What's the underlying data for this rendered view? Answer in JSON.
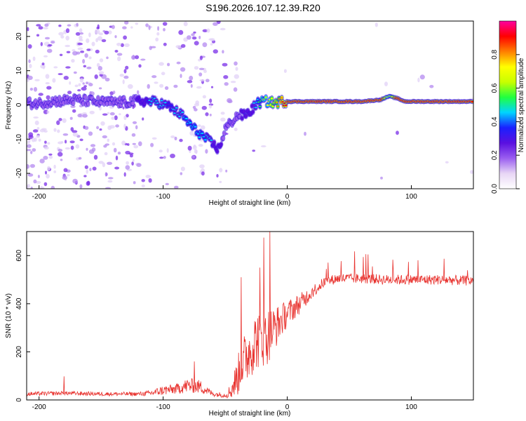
{
  "title": "S196.2026.107.12.39.R20",
  "colors": {
    "snr_line": "#e8322e",
    "spec_bg": "#ffffff",
    "colormap": [
      "#ffffff",
      "#e8d6f5",
      "#9a5ef0",
      "#5a10e0",
      "#1a20ff",
      "#00d4ff",
      "#20ff40",
      "#c8ff00",
      "#ffff00",
      "#ff7f00",
      "#ff0000",
      "#ff00a0"
    ]
  },
  "chart_data": [
    {
      "type": "heatmap",
      "name": "spectrogram",
      "xlabel": "Height of straight line (km)",
      "ylabel": "Frequency (Hz)",
      "xlim": [
        -210,
        150
      ],
      "ylim": [
        -24.5,
        24.5
      ],
      "xticks": [
        -200,
        -100,
        0,
        100
      ],
      "yticks": [
        -20,
        -10,
        0,
        10,
        20
      ],
      "colorbar": {
        "label": "Normalized spectral amplitude",
        "range": [
          0,
          1
        ],
        "ticks": [
          0.0,
          0.2,
          0.4,
          0.6,
          0.8
        ]
      },
      "ridge": {
        "x": [
          -200,
          -185,
          -170,
          -150,
          -130,
          -120,
          -105,
          -95,
          -85,
          -75,
          -65,
          -55,
          -50,
          -45,
          -40,
          -35,
          -30,
          -25,
          -20,
          -15,
          -10,
          -5,
          0,
          20,
          40,
          60,
          75,
          82,
          88,
          95,
          110,
          130,
          150
        ],
        "freq": [
          0.5,
          1.2,
          1.5,
          0.8,
          0.8,
          1.2,
          0.8,
          -0.5,
          -3,
          -7,
          -10,
          -13,
          -7,
          -5,
          -3,
          -3,
          -2,
          0.2,
          1.0,
          1.0,
          0.5,
          1.0,
          1.0,
          1.0,
          1.0,
          1.0,
          1.5,
          2.5,
          2.0,
          1.0,
          1.0,
          1.0,
          1.0
        ],
        "amplitude": [
          0.25,
          0.28,
          0.22,
          0.2,
          0.22,
          0.35,
          0.45,
          0.4,
          0.45,
          0.5,
          0.45,
          0.35,
          0.3,
          0.3,
          0.3,
          0.35,
          0.35,
          0.45,
          0.6,
          0.7,
          0.75,
          0.85,
          0.95,
          0.95,
          0.95,
          0.95,
          0.95,
          0.6,
          0.9,
          0.95,
          0.95,
          0.95,
          0.95
        ]
      }
    },
    {
      "type": "line",
      "name": "snr",
      "xlabel": "Height of straight line (km)",
      "ylabel": "SNR (10 * v/v)",
      "xlim": [
        -210,
        150
      ],
      "ylim": [
        0,
        700
      ],
      "xticks": [
        -200,
        -100,
        0,
        100
      ],
      "yticks": [
        0,
        200,
        400,
        600
      ],
      "envelope": {
        "x": [
          -210,
          -180,
          -150,
          -120,
          -110,
          -100,
          -90,
          -80,
          -70,
          -60,
          -50,
          -45,
          -40,
          -35,
          -30,
          -25,
          -20,
          -15,
          -10,
          -5,
          0,
          10,
          20,
          30,
          40,
          60,
          80,
          100,
          120,
          150
        ],
        "mean": [
          25,
          28,
          25,
          25,
          28,
          40,
          45,
          60,
          55,
          25,
          20,
          40,
          100,
          160,
          210,
          250,
          260,
          270,
          300,
          330,
          360,
          400,
          450,
          490,
          505,
          505,
          500,
          500,
          500,
          495
        ],
        "noise": [
          12,
          12,
          12,
          12,
          18,
          30,
          30,
          45,
          40,
          15,
          15,
          50,
          120,
          160,
          170,
          180,
          180,
          170,
          130,
          100,
          80,
          60,
          40,
          30,
          30,
          30,
          30,
          30,
          30,
          30
        ]
      },
      "spikes": [
        {
          "x": -180,
          "y": 98
        },
        {
          "x": -75,
          "y": 160
        },
        {
          "x": -37,
          "y": 510
        },
        {
          "x": -22,
          "y": 550
        },
        {
          "x": -19,
          "y": 675
        },
        {
          "x": -14,
          "y": 700
        }
      ]
    }
  ]
}
